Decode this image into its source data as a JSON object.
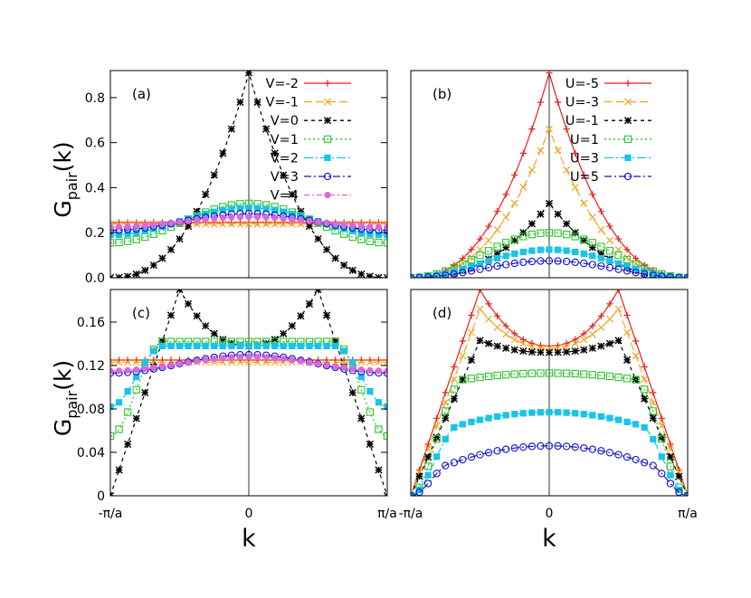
{
  "chart_data": [
    {
      "panel": "(a)",
      "type": "line",
      "ylabel_main": "G",
      "ylabel_sub": "pair",
      "ylabel_tail": "(k)",
      "xlabel": "",
      "xlim": [
        -1,
        1
      ],
      "ylim": [
        0,
        0.92
      ],
      "yticks": [
        "0.0",
        "0.2",
        "0.4",
        "0.6",
        "0.8"
      ],
      "yticks_values": [
        0,
        0.2,
        0.4,
        0.6,
        0.8
      ],
      "xticks": [],
      "legend": "top-right",
      "series": [
        {
          "name": "V=-2",
          "color": "#e8201c",
          "marker": "plus",
          "dash": "",
          "shape": "flat",
          "params": {
            "c": 0.245
          }
        },
        {
          "name": "V=-1",
          "color": "#f0a628",
          "marker": "x",
          "dash": "9,4",
          "shape": "flat",
          "params": {
            "c": 0.238
          }
        },
        {
          "name": "V=0",
          "color": "#000000",
          "marker": "star",
          "dash": "4,4",
          "shape": "cusp",
          "params": {
            "edge": 0.0,
            "peak": 0.91
          }
        },
        {
          "name": "V=1",
          "color": "#2dc42d",
          "marker": "opensquare",
          "dash": "2,3",
          "shape": "cosine",
          "params": {
            "edge": 0.155,
            "peak": 0.33
          }
        },
        {
          "name": "V=2",
          "color": "#18c4e8",
          "marker": "filledsquare",
          "dash": "10,3,2,3",
          "shape": "cosine",
          "params": {
            "edge": 0.19,
            "peak": 0.31
          }
        },
        {
          "name": "V=3",
          "color": "#1414c8",
          "marker": "opencircle",
          "dash": "8,3,2,3",
          "shape": "cosine",
          "params": {
            "edge": 0.21,
            "peak": 0.285
          }
        },
        {
          "name": "V=4",
          "color": "#d868e0",
          "marker": "filledcircle",
          "dash": "6,3,2,3",
          "shape": "cosine",
          "params": {
            "edge": 0.225,
            "peak": 0.27
          }
        }
      ]
    },
    {
      "panel": "(b)",
      "type": "line",
      "xlim": [
        -1,
        1
      ],
      "ylim": [
        0,
        0.92
      ],
      "yticks": [],
      "yticks_values": [],
      "xticks": [],
      "legend": "top-right",
      "series": [
        {
          "name": "U=-5",
          "color": "#e8201c",
          "marker": "plus",
          "dash": "",
          "shape": "cusp",
          "params": {
            "edge": 0.0,
            "peak": 0.91
          }
        },
        {
          "name": "U=-3",
          "color": "#f0a628",
          "marker": "x",
          "dash": "9,4",
          "shape": "cusp",
          "params": {
            "edge": 0.0,
            "peak": 0.66
          }
        },
        {
          "name": "U=-1",
          "color": "#000000",
          "marker": "star",
          "dash": "4,4",
          "shape": "cusp",
          "params": {
            "edge": 0.0,
            "peak": 0.33
          }
        },
        {
          "name": "U=1",
          "color": "#2dc42d",
          "marker": "opensquare",
          "dash": "2,3",
          "shape": "cosine",
          "params": {
            "edge": 0.0,
            "peak": 0.2
          }
        },
        {
          "name": "U=3",
          "color": "#18c4e8",
          "marker": "filledsquare",
          "dash": "10,3,2,3",
          "shape": "cosine",
          "params": {
            "edge": 0.0,
            "peak": 0.125
          }
        },
        {
          "name": "U=5",
          "color": "#1414c8",
          "marker": "opencircle",
          "dash": "8,3,2,3",
          "shape": "cosine",
          "params": {
            "edge": 0.0,
            "peak": 0.075
          }
        }
      ]
    },
    {
      "panel": "(c)",
      "type": "line",
      "ylabel_main": "G",
      "ylabel_sub": "pair",
      "ylabel_tail": "(k)",
      "xlabel": "k",
      "xlim": [
        -1,
        1
      ],
      "ylim": [
        0,
        0.19
      ],
      "yticks": [
        "0",
        "0.04",
        "0.08",
        "0.12",
        "0.16"
      ],
      "yticks_values": [
        0,
        0.04,
        0.08,
        0.12,
        0.16
      ],
      "xticks": [
        "-π/a",
        "0",
        "π/a"
      ],
      "series": [
        {
          "name": "V=-2",
          "color": "#e8201c",
          "marker": "plus",
          "dash": "",
          "shape": "flat",
          "params": {
            "c": 0.125
          }
        },
        {
          "name": "V=-1",
          "color": "#f0a628",
          "marker": "x",
          "dash": "9,4",
          "shape": "flat",
          "params": {
            "c": 0.123
          }
        },
        {
          "name": "V=0",
          "color": "#000000",
          "marker": "star",
          "dash": "4,4",
          "shape": "dome",
          "params": {
            "kf": 0.5,
            "edge": 0.0,
            "peak": 0.19,
            "mid": 0.138,
            "top": 0.138
          }
        },
        {
          "name": "V=1",
          "color": "#2dc42d",
          "marker": "opensquare",
          "dash": "2,3",
          "shape": "plateau",
          "params": {
            "kf": 0.62,
            "edge": 0.055,
            "top": 0.142,
            "bow": 0.0
          }
        },
        {
          "name": "V=2",
          "color": "#18c4e8",
          "marker": "filledsquare",
          "dash": "10,3,2,3",
          "shape": "plateau",
          "params": {
            "kf": 0.62,
            "edge": 0.082,
            "top": 0.138,
            "bow": 0.0
          }
        },
        {
          "name": "V=3",
          "color": "#1414c8",
          "marker": "opencircle",
          "dash": "8,3,2,3",
          "shape": "cosine",
          "params": {
            "edge": 0.113,
            "peak": 0.13
          }
        },
        {
          "name": "V=4",
          "color": "#d868e0",
          "marker": "filledcircle",
          "dash": "6,3,2,3",
          "shape": "cosine",
          "params": {
            "edge": 0.115,
            "peak": 0.128
          }
        }
      ]
    },
    {
      "panel": "(d)",
      "type": "line",
      "xlabel": "k",
      "xlim": [
        -1,
        1
      ],
      "ylim": [
        0,
        0.19
      ],
      "yticks": [],
      "yticks_values": [],
      "xticks": [
        "-π/a",
        "0",
        "π/a"
      ],
      "series": [
        {
          "name": "U=-5",
          "color": "#e8201c",
          "marker": "plus",
          "dash": "",
          "shape": "dome",
          "params": {
            "kf": 0.5,
            "edge": 0.0,
            "peak": 0.19,
            "mid": 0.138,
            "top": 0.138
          }
        },
        {
          "name": "U=-3",
          "color": "#f0a628",
          "marker": "x",
          "dash": "9,4",
          "shape": "dome",
          "params": {
            "kf": 0.5,
            "edge": 0.0,
            "peak": 0.172,
            "mid": 0.136,
            "top": 0.136
          }
        },
        {
          "name": "U=-1",
          "color": "#000000",
          "marker": "star",
          "dash": "4,4",
          "shape": "dome",
          "params": {
            "kf": 0.5,
            "edge": 0.0,
            "peak": 0.143,
            "mid": 0.132,
            "top": 0.132
          }
        },
        {
          "name": "U=1",
          "color": "#2dc42d",
          "marker": "opensquare",
          "dash": "2,3",
          "shape": "plateau",
          "params": {
            "kf": 0.62,
            "edge": 0.0,
            "top": 0.113,
            "bow": 0.006
          }
        },
        {
          "name": "U=3",
          "color": "#18c4e8",
          "marker": "filledsquare",
          "dash": "10,3,2,3",
          "shape": "plateau",
          "params": {
            "kf": 0.65,
            "edge": 0.0,
            "top": 0.077,
            "bow": 0.012
          }
        },
        {
          "name": "U=5",
          "color": "#1414c8",
          "marker": "opencircle",
          "dash": "8,3,2,3",
          "shape": "plateau",
          "params": {
            "kf": 0.7,
            "edge": 0.0,
            "top": 0.046,
            "bow": 0.016
          }
        }
      ]
    }
  ]
}
